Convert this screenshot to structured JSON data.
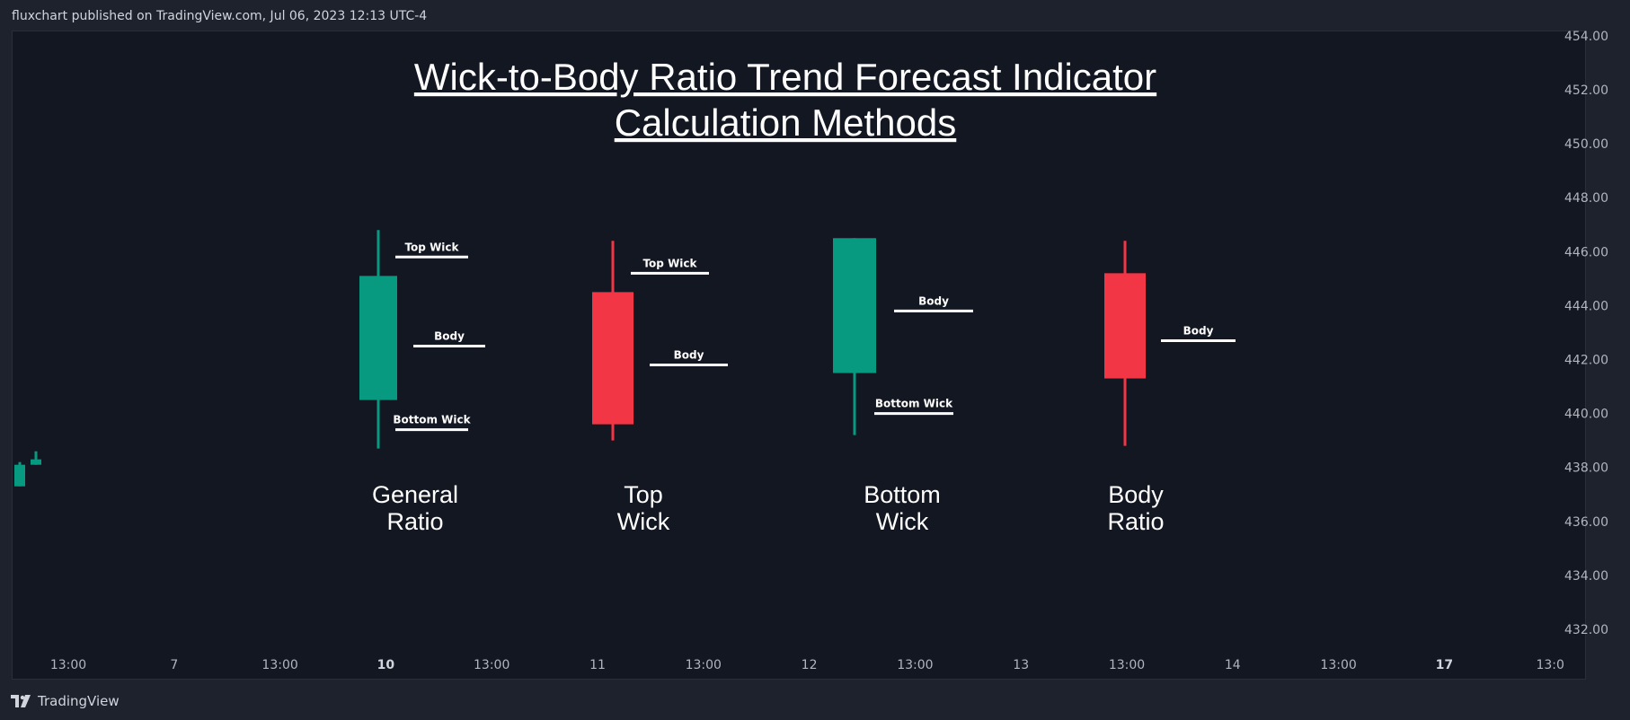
{
  "header": {
    "publish_info": "fluxchart published on TradingView.com, Jul 06, 2023 12:13 UTC-4"
  },
  "footer": {
    "brand": "TradingView",
    "logo_icon": "tradingview-logo-icon"
  },
  "colors": {
    "background": "#1e222d",
    "pane": "#131722",
    "up": "#089981",
    "down": "#f23645",
    "text": "#ffffff",
    "axis_text": "#b2b5be"
  },
  "chart_data": {
    "type": "candlestick",
    "title_lines": [
      "Wick-to-Body Ratio Trend Forecast Indicator",
      "Calculation Methods"
    ],
    "y_axis": {
      "ticks": [
        "454.00",
        "452.00",
        "450.00",
        "448.00",
        "446.00",
        "444.00",
        "442.00",
        "440.00",
        "438.00",
        "436.00",
        "434.00",
        "432.00"
      ],
      "range": [
        431.0,
        454.0
      ]
    },
    "x_axis": {
      "ticks": [
        {
          "label": "13:00",
          "bold": false
        },
        {
          "label": "7",
          "bold": false
        },
        {
          "label": "13:00",
          "bold": false
        },
        {
          "label": "10",
          "bold": true
        },
        {
          "label": "13:00",
          "bold": false
        },
        {
          "label": "11",
          "bold": false
        },
        {
          "label": "13:00",
          "bold": false
        },
        {
          "label": "12",
          "bold": false
        },
        {
          "label": "13:00",
          "bold": false
        },
        {
          "label": "13",
          "bold": false
        },
        {
          "label": "13:00",
          "bold": false
        },
        {
          "label": "14",
          "bold": false
        },
        {
          "label": "13:00",
          "bold": false
        },
        {
          "label": "17",
          "bold": true
        },
        {
          "label": "13:0",
          "bold": false
        }
      ]
    },
    "small_candles": [
      {
        "open": 437.3,
        "close": 438.1,
        "high": 438.2,
        "low": 437.3,
        "direction": "up"
      },
      {
        "open": 438.1,
        "close": 438.3,
        "high": 438.6,
        "low": 438.1,
        "direction": "up"
      }
    ],
    "example_candles": [
      {
        "name": "General Ratio",
        "caption": [
          "General",
          "Ratio"
        ],
        "direction": "up",
        "open": 440.5,
        "close": 445.1,
        "high": 446.8,
        "low": 438.7,
        "annotations": [
          {
            "label": "Top Wick",
            "at": 445.8
          },
          {
            "label": "Body",
            "at": 442.5
          },
          {
            "label": "Bottom Wick",
            "at": 439.4
          }
        ]
      },
      {
        "name": "Top Wick",
        "caption": [
          "Top",
          "Wick"
        ],
        "direction": "down",
        "open": 444.5,
        "close": 439.6,
        "high": 446.4,
        "low": 439.0,
        "annotations": [
          {
            "label": "Top Wick",
            "at": 445.2
          },
          {
            "label": "Body",
            "at": 441.8
          }
        ]
      },
      {
        "name": "Bottom Wick",
        "caption": [
          "Bottom",
          "Wick"
        ],
        "direction": "up",
        "open": 441.5,
        "close": 446.5,
        "high": 446.5,
        "low": 439.2,
        "annotations": [
          {
            "label": "Body",
            "at": 443.8
          },
          {
            "label": "Bottom Wick",
            "at": 440.0
          }
        ]
      },
      {
        "name": "Body Ratio",
        "caption": [
          "Body",
          "Ratio"
        ],
        "direction": "down",
        "open": 445.2,
        "close": 441.3,
        "high": 446.4,
        "low": 438.8,
        "annotations": [
          {
            "label": "Body",
            "at": 442.7
          }
        ]
      }
    ]
  }
}
